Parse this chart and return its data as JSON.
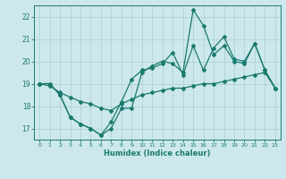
{
  "xlabel": "Humidex (Indice chaleur)",
  "background_color": "#cce8ec",
  "grid_color": "#aacdd4",
  "line_color": "#1a7a6e",
  "xlim": [
    -0.5,
    23.5
  ],
  "ylim": [
    16.5,
    22.5
  ],
  "yticks": [
    17,
    18,
    19,
    20,
    21,
    22
  ],
  "xticks": [
    0,
    1,
    2,
    3,
    4,
    5,
    6,
    7,
    8,
    9,
    10,
    11,
    12,
    13,
    14,
    15,
    16,
    17,
    18,
    19,
    20,
    21,
    22,
    23
  ],
  "line1_x": [
    0,
    1,
    2,
    3,
    4,
    5,
    6,
    7,
    8,
    9,
    10,
    11,
    12,
    13,
    14,
    15,
    16,
    17,
    18,
    19,
    20,
    21,
    22,
    23
  ],
  "line1_y": [
    19.0,
    19.0,
    18.5,
    17.5,
    17.2,
    17.0,
    16.7,
    17.0,
    17.9,
    17.9,
    19.5,
    19.8,
    20.0,
    19.9,
    19.5,
    22.3,
    21.6,
    20.3,
    20.7,
    20.0,
    19.9,
    20.8,
    19.6,
    18.8
  ],
  "line2_x": [
    0,
    1,
    2,
    3,
    4,
    5,
    6,
    7,
    8,
    9,
    10,
    11,
    12,
    13,
    14,
    15,
    16,
    17,
    18,
    19,
    20,
    21,
    22,
    23
  ],
  "line2_y": [
    19.0,
    19.0,
    18.5,
    17.5,
    17.2,
    17.0,
    16.7,
    17.3,
    18.2,
    19.2,
    19.6,
    19.7,
    19.9,
    20.4,
    19.4,
    20.7,
    19.6,
    20.6,
    21.1,
    20.1,
    20.0,
    20.8,
    19.6,
    18.8
  ],
  "line3_x": [
    0,
    1,
    2,
    3,
    4,
    5,
    6,
    7,
    8,
    9,
    10,
    11,
    12,
    13,
    14,
    15,
    16,
    17,
    18,
    19,
    20,
    21,
    22,
    23
  ],
  "line3_y": [
    19.0,
    18.9,
    18.6,
    18.4,
    18.2,
    18.1,
    17.9,
    17.8,
    18.1,
    18.3,
    18.5,
    18.6,
    18.7,
    18.8,
    18.8,
    18.9,
    19.0,
    19.0,
    19.1,
    19.2,
    19.3,
    19.4,
    19.5,
    18.8
  ]
}
